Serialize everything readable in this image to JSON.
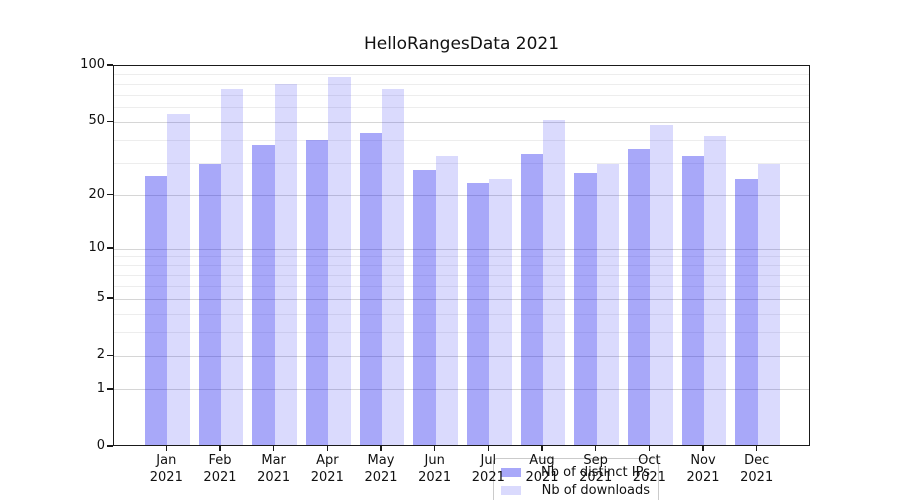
{
  "title": "HelloRangesData 2021",
  "legend": {
    "items": [
      {
        "label": "Nb of distinct IPs"
      },
      {
        "label": "Nb of downloads"
      }
    ]
  },
  "chart_data": {
    "type": "bar",
    "title": "HelloRangesData 2021",
    "categories": [
      "Jan 2021",
      "Feb 2021",
      "Mar 2021",
      "Apr 2021",
      "May 2021",
      "Jun 2021",
      "Jul 2021",
      "Aug 2021",
      "Sep 2021",
      "Oct 2021",
      "Nov 2021",
      "Dec 2021"
    ],
    "series": [
      {
        "name": "Nb of distinct IPs",
        "color": "rgba(25,25,240,0.38)",
        "values": [
          25,
          29,
          37,
          39,
          43,
          27,
          23,
          33,
          26,
          35,
          32,
          24
        ]
      },
      {
        "name": "Nb of downloads",
        "color": "rgba(25,25,240,0.16)",
        "values": [
          54,
          74,
          78,
          85,
          74,
          32,
          24,
          50,
          29,
          47,
          41,
          29
        ]
      }
    ],
    "yscale": "log1p",
    "ylim": [
      0,
      100
    ],
    "y_major_ticks": [
      0,
      1,
      2,
      5,
      10,
      20,
      50,
      100
    ],
    "y_minor_ticks": [
      3,
      4,
      6,
      7,
      8,
      9,
      30,
      40,
      60,
      70,
      80,
      90
    ],
    "xlabel": "",
    "ylabel": "",
    "grid": true,
    "legend_position": "inside-bottom-center"
  },
  "colors": {
    "major_grid": "#d6d6d6",
    "minor_grid": "#ededed",
    "spine": "#1a1a1a",
    "text": "#111111"
  }
}
